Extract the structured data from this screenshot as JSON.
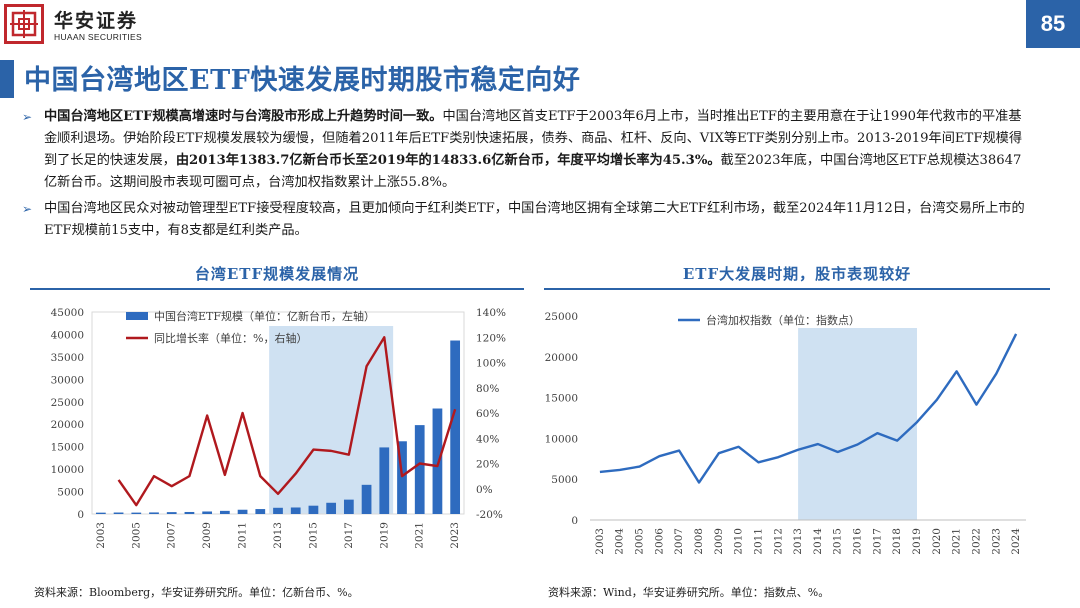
{
  "header": {
    "logo_cn": "华安证券",
    "logo_en": "HUAAN SECURITIES",
    "page_number": "85",
    "brand_color": "#c0282d",
    "accent_color": "#2b63a8"
  },
  "title": "中国台湾地区ETF快速发展时期股市稳定向好",
  "bullets": [
    {
      "bold_lead": "中国台湾地区ETF规模高增速时与台湾股市形成上升趋势时间一致。",
      "text": "中国台湾地区首支ETF于2003年6月上市，当时推出ETF的主要用意在于让1990年代救市的平准基金顺利退场。伊始阶段ETF规模发展较为缓慢，但随着2011年后ETF类别快速拓展，债券、商品、杠杆、反向、VIX等ETF类别分别上市。2013-2019年间ETF规模得到了长足的快速发展，",
      "bold_mid": "由2013年1383.7亿新台币长至2019年的14833.6亿新台币，年度平均增长率为45.3%。",
      "tail": "截至2023年底，中国台湾地区ETF总规模达38647亿新台币。这期间股市表现可圈可点，台湾加权指数累计上涨55.8%。"
    },
    {
      "text": "中国台湾地区民众对被动管理型ETF接受程度较高，且更加倾向于红利类ETF，中国台湾地区拥有全球第二大ETF红利市场，截至2024年11月12日，台湾交易所上市的ETF规模前15支中，有8支都是红利类产品。"
    }
  ],
  "left_chart_header": "台湾ETF规模发展情况",
  "right_chart_header": "ETF大发展时期，股市表现较好",
  "left_source": "资料来源：Bloomberg，华安证券研究所。单位：亿新台币、%。",
  "right_source": "资料来源：Wind，华安证券研究所。单位：指数点、%。",
  "chart_data": [
    {
      "type": "bar",
      "categories": [
        "2003",
        "2004",
        "2005",
        "2006",
        "2007",
        "2008",
        "2009",
        "2010",
        "2011",
        "2012",
        "2013",
        "2014",
        "2015",
        "2016",
        "2017",
        "2018",
        "2019",
        "2020",
        "2021",
        "2022",
        "2023"
      ],
      "x_tick_labels": [
        "2003",
        "2005",
        "2007",
        "2009",
        "2011",
        "2013",
        "2015",
        "2017",
        "2019",
        "2021",
        "2023"
      ],
      "series": [
        {
          "name": "中国台湾ETF规模（单位：亿新台币，左轴）",
          "type": "bar",
          "axis": "left",
          "color": "#2e6bbf",
          "values": [
            300,
            330,
            310,
            350,
            420,
            450,
            560,
            700,
            950,
            1100,
            1383.7,
            1450,
            1850,
            2500,
            3200,
            6500,
            14833.6,
            16200,
            19800,
            23500,
            38647
          ]
        },
        {
          "name": "同比增长率（单位：%，右轴）",
          "type": "line",
          "axis": "right",
          "color": "#b0191e",
          "values": [
            null,
            7,
            -13,
            10,
            2,
            10,
            58,
            11,
            60,
            10,
            -4,
            12,
            31,
            30,
            27,
            97,
            120,
            10,
            20,
            18,
            63
          ]
        }
      ],
      "left_axis": {
        "min": 0,
        "max": 45000,
        "ticks": [
          "0",
          "5000",
          "10000",
          "15000",
          "20000",
          "25000",
          "30000",
          "35000",
          "40000",
          "45000"
        ]
      },
      "right_axis": {
        "min": -20,
        "max": 140,
        "ticks": [
          "-20%",
          "0%",
          "20%",
          "40%",
          "60%",
          "80%",
          "100%",
          "120%",
          "140%"
        ]
      },
      "highlight_range": [
        "2013",
        "2019"
      ],
      "highlight_color": "#cfe1f2",
      "legend": "top-left"
    },
    {
      "type": "line",
      "x": [
        "2003",
        "2004",
        "2005",
        "2006",
        "2007",
        "2008",
        "2009",
        "2010",
        "2011",
        "2012",
        "2013",
        "2014",
        "2015",
        "2016",
        "2017",
        "2018",
        "2019",
        "2020",
        "2021",
        "2022",
        "2023",
        "2024"
      ],
      "series": [
        {
          "name": "台湾加权指数（单位：指数点）",
          "color": "#2e6bbf",
          "values": [
            5890,
            6140,
            6548,
            7823,
            8506,
            4591,
            8188,
            8973,
            7072,
            7699,
            8611,
            9307,
            8338,
            9253,
            10643,
            9727,
            11997,
            14732,
            18218,
            14137,
            17930,
            22800
          ]
        }
      ],
      "y_axis": {
        "min": 0,
        "max": 25000,
        "ticks": [
          "0",
          "5000",
          "10000",
          "15000",
          "20000",
          "25000"
        ]
      },
      "highlight_range": [
        "2013",
        "2019"
      ],
      "highlight_color": "#cfe1f2",
      "legend": "top-left"
    }
  ]
}
